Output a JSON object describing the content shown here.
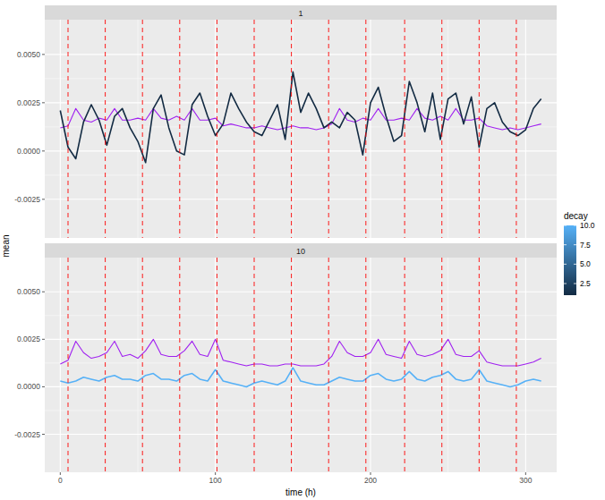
{
  "chart_data": [
    {
      "type": "line",
      "title": "1",
      "y_label": "mean",
      "tick_labels": "y",
      "grid": true,
      "xlim": [
        -10,
        320
      ],
      "xticks": [
        0,
        100,
        200,
        300
      ],
      "ylim": [
        -0.0045,
        0.0068
      ],
      "yticks": [
        -0.0025,
        {
          "value": 0,
          "label": "0.0000"
        },
        0.0025,
        {
          "value": 0.005,
          "label": "0.0050"
        }
      ],
      "reference_lines": {
        "values": [
          5,
          29,
          53,
          77,
          101,
          125,
          149,
          173,
          197,
          222,
          246,
          270,
          294
        ],
        "color": "#ff0000",
        "line_style": "dashed"
      },
      "colorbar": {
        "title": "decay",
        "range": [
          1,
          10
        ],
        "ticks": [
          2.5,
          {
            "value": 5,
            "label": "5.0"
          },
          7.5,
          {
            "value": 10,
            "label": "10.0"
          }
        ],
        "colors": [
          "#132B43",
          "#56B1F7"
        ]
      },
      "x": [
        0,
        5,
        10,
        15,
        20,
        25,
        30,
        35,
        40,
        45,
        50,
        55,
        60,
        65,
        70,
        75,
        80,
        85,
        90,
        95,
        100,
        105,
        110,
        115,
        120,
        125,
        130,
        135,
        140,
        145,
        150,
        155,
        160,
        165,
        170,
        175,
        180,
        185,
        190,
        195,
        200,
        205,
        210,
        215,
        220,
        225,
        230,
        235,
        240,
        245,
        250,
        255,
        260,
        265,
        270,
        275,
        280,
        285,
        290,
        295,
        300,
        305,
        310
      ],
      "series": [
        {
          "color": "#a020f0",
          "values": [
            0.0012,
            0.0013,
            0.0022,
            0.0016,
            0.0015,
            0.0017,
            0.0016,
            0.0022,
            0.0016,
            0.0016,
            0.0017,
            0.0016,
            0.0022,
            0.0017,
            0.0016,
            0.0018,
            0.0016,
            0.0022,
            0.0016,
            0.0016,
            0.0017,
            0.0013,
            0.0014,
            0.0013,
            0.0012,
            0.0012,
            0.0013,
            0.0012,
            0.0011,
            0.0012,
            0.0013,
            0.0012,
            0.0012,
            0.0011,
            0.0012,
            0.0014,
            0.0022,
            0.0016,
            0.0015,
            0.0017,
            0.0016,
            0.0022,
            0.0016,
            0.0016,
            0.0017,
            0.0016,
            0.0022,
            0.0017,
            0.0016,
            0.0018,
            0.0016,
            0.0022,
            0.0016,
            0.0016,
            0.0017,
            0.0013,
            0.0012,
            0.0011,
            0.0012,
            0.0011,
            0.0012,
            0.0013,
            0.0014
          ]
        },
        {
          "color": "#132B43",
          "values": [
            0.0021,
            0.0002,
            -0.0004,
            0.0015,
            0.0024,
            0.0016,
            0.0003,
            0.0018,
            0.0022,
            0.0012,
            0.0005,
            -0.0006,
            0.0022,
            0.0029,
            0.0012,
            0.0,
            -0.0002,
            0.0024,
            0.003,
            0.0018,
            0.0008,
            0.0014,
            0.003,
            0.0022,
            0.0015,
            0.001,
            0.0008,
            0.0016,
            0.0024,
            0.0006,
            0.0041,
            0.002,
            0.003,
            0.0022,
            0.0012,
            0.0015,
            0.0012,
            0.002,
            0.0016,
            -0.0002,
            0.0025,
            0.0033,
            0.0018,
            0.0005,
            0.0008,
            0.0036,
            0.0025,
            0.001,
            0.003,
            0.0006,
            0.0027,
            0.003,
            0.0014,
            0.0028,
            0.0002,
            0.0022,
            0.0025,
            0.0015,
            0.001,
            0.0008,
            0.0011,
            0.0022,
            0.0027
          ]
        }
      ]
    },
    {
      "type": "line",
      "title": "10",
      "x_label": "time (h)",
      "grid": true,
      "xlim": [
        -10,
        320
      ],
      "xticks": [
        0,
        100,
        200,
        300
      ],
      "ylim": [
        -0.0045,
        0.0068
      ],
      "yticks": [
        -0.0025,
        {
          "value": 0,
          "label": "0.0000"
        },
        0.0025,
        {
          "value": 0.005,
          "label": "0.0050"
        }
      ],
      "reference_lines": {
        "values": [
          5,
          29,
          53,
          77,
          101,
          125,
          149,
          173,
          197,
          222,
          246,
          270,
          294
        ],
        "color": "#ff0000",
        "line_style": "dashed"
      },
      "x": [
        0,
        5,
        10,
        15,
        20,
        25,
        30,
        35,
        40,
        45,
        50,
        55,
        60,
        65,
        70,
        75,
        80,
        85,
        90,
        95,
        100,
        105,
        110,
        115,
        120,
        125,
        130,
        135,
        140,
        145,
        150,
        155,
        160,
        165,
        170,
        175,
        180,
        185,
        190,
        195,
        200,
        205,
        210,
        215,
        220,
        225,
        230,
        235,
        240,
        245,
        250,
        255,
        260,
        265,
        270,
        275,
        280,
        285,
        290,
        295,
        300,
        305,
        310
      ],
      "series": [
        {
          "color": "#a020f0",
          "values": [
            0.0012,
            0.0014,
            0.0024,
            0.0018,
            0.0015,
            0.0016,
            0.0018,
            0.0024,
            0.0016,
            0.0017,
            0.0015,
            0.0019,
            0.0025,
            0.0017,
            0.0016,
            0.0016,
            0.0019,
            0.0024,
            0.0017,
            0.0016,
            0.0025,
            0.0014,
            0.0013,
            0.0012,
            0.0011,
            0.0012,
            0.0012,
            0.0011,
            0.0011,
            0.0012,
            0.0012,
            0.0011,
            0.0011,
            0.0011,
            0.0012,
            0.0016,
            0.0024,
            0.0018,
            0.0016,
            0.0016,
            0.0018,
            0.0025,
            0.0017,
            0.0016,
            0.0015,
            0.0024,
            0.0017,
            0.0016,
            0.0017,
            0.0019,
            0.0025,
            0.0017,
            0.0016,
            0.0016,
            0.0019,
            0.0013,
            0.0012,
            0.0011,
            0.0011,
            0.0011,
            0.0012,
            0.0013,
            0.0015
          ]
        },
        {
          "color": "#56B1F7",
          "values": [
            0.0003,
            0.0002,
            0.0003,
            0.0005,
            0.0004,
            0.0003,
            0.0005,
            0.0006,
            0.0004,
            0.0004,
            0.0003,
            0.0006,
            0.0007,
            0.0004,
            0.0004,
            0.0003,
            0.0006,
            0.0007,
            0.0004,
            0.0003,
            0.0009,
            0.0003,
            0.0002,
            0.0001,
            0.0,
            0.0002,
            0.0003,
            0.0002,
            0.0001,
            0.0003,
            0.001,
            0.0003,
            0.0002,
            0.0001,
            0.0001,
            0.0003,
            0.0005,
            0.0004,
            0.0003,
            0.0003,
            0.0006,
            0.0007,
            0.0004,
            0.0003,
            0.0004,
            0.0008,
            0.0004,
            0.0003,
            0.0005,
            0.0006,
            0.0008,
            0.0004,
            0.0003,
            0.0004,
            0.0009,
            0.0003,
            0.0002,
            0.0001,
            0.0,
            0.0001,
            0.0003,
            0.0004,
            0.0003
          ]
        }
      ]
    }
  ]
}
